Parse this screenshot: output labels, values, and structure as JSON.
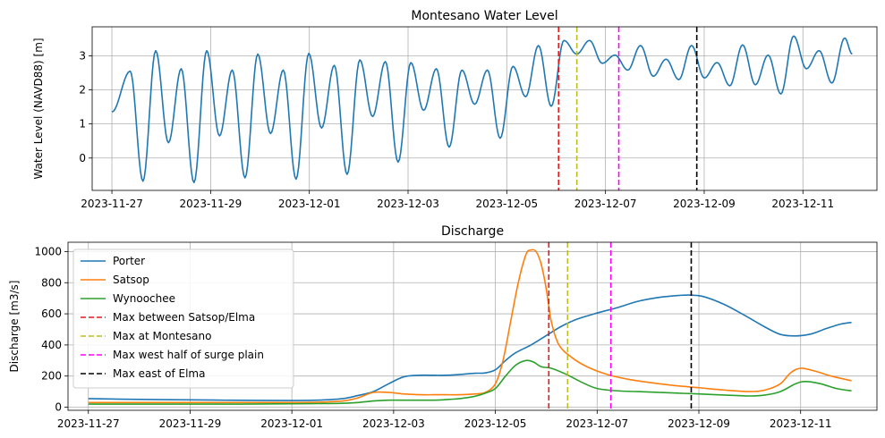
{
  "chart_data": [
    {
      "type": "line",
      "title": "Montesano Water Level",
      "xlabel": "",
      "ylabel": "Water Level (NAVD88) [m]",
      "x_ticks": [
        "2023-11-27",
        "2023-11-29",
        "2023-12-01",
        "2023-12-03",
        "2023-12-05",
        "2023-12-07",
        "2023-12-09",
        "2023-12-11"
      ],
      "y_ticks": [
        0,
        1,
        2,
        3
      ],
      "xlim_days": [
        -0.4,
        15.5
      ],
      "ylim": [
        -0.95,
        3.85
      ],
      "grid": true,
      "tide": {
        "start_day": 0.0,
        "end_day": 15.0,
        "period_days": 0.517,
        "first_high_day": 0.37,
        "highs": [
          2.55,
          3.15,
          2.62,
          3.15,
          2.58,
          3.05,
          2.58,
          3.07,
          2.72,
          2.88,
          2.83,
          2.8,
          2.62,
          2.58,
          2.58,
          2.69,
          3.3,
          3.45,
          3.45,
          3.02,
          3.3,
          2.9,
          3.3,
          2.8,
          3.32,
          3.02,
          3.58,
          3.15,
          3.52
        ],
        "lows": [
          -0.68,
          0.45,
          -0.72,
          0.65,
          -0.58,
          0.72,
          -0.62,
          0.88,
          -0.48,
          1.22,
          -0.12,
          1.4,
          0.32,
          1.58,
          0.58,
          1.8,
          1.52,
          3.05,
          2.78,
          2.58,
          2.4,
          2.3,
          2.35,
          2.12,
          2.15,
          1.88,
          2.62,
          2.2,
          2.4
        ],
        "start_value": 1.35,
        "end_value": 3.05
      },
      "series": [
        {
          "name": "",
          "color": "#1f77b4"
        }
      ],
      "vlines": [
        {
          "day": 9.05,
          "color": "#e41a1c"
        },
        {
          "day": 9.42,
          "color": "#bcbd22"
        },
        {
          "day": 10.27,
          "color": "#ff00ff"
        },
        {
          "day": 11.85,
          "color": "#000000"
        }
      ]
    },
    {
      "type": "line",
      "title": "Discharge",
      "xlabel": "",
      "ylabel": "Discharge [m3/s]",
      "x_ticks": [
        "2023-11-27",
        "2023-11-29",
        "2023-12-01",
        "2023-12-03",
        "2023-12-05",
        "2023-12-07",
        "2023-12-09",
        "2023-12-11"
      ],
      "y_ticks": [
        0,
        200,
        400,
        600,
        800,
        1000
      ],
      "xlim_days": [
        -0.4,
        15.5
      ],
      "ylim": [
        -20,
        1060
      ],
      "grid": true,
      "legend_position": "upper-left",
      "series": [
        {
          "name": "Porter",
          "color": "#1f77b4",
          "x": [
            0,
            1,
            2,
            3,
            4,
            4.5,
            5,
            5.3,
            5.6,
            5.9,
            6.2,
            6.5,
            6.8,
            7.0,
            7.3,
            7.6,
            7.8,
            8.0,
            8.2,
            8.4,
            8.7,
            9.0,
            9.3,
            9.6,
            10.0,
            10.4,
            10.8,
            11.2,
            11.6,
            11.85,
            12.1,
            12.5,
            12.9,
            13.3,
            13.6,
            13.9,
            14.2,
            14.5,
            14.8,
            15.0
          ],
          "values": [
            55,
            50,
            47,
            44,
            43,
            45,
            55,
            75,
            100,
            150,
            195,
            205,
            205,
            205,
            210,
            218,
            220,
            240,
            300,
            350,
            400,
            460,
            520,
            565,
            605,
            640,
            680,
            705,
            718,
            720,
            710,
            660,
            590,
            515,
            468,
            458,
            470,
            505,
            535,
            545
          ]
        },
        {
          "name": "Satsop",
          "color": "#ff7f0e",
          "x": [
            0,
            1,
            2,
            3,
            4,
            4.5,
            5,
            5.3,
            5.6,
            5.9,
            6.2,
            6.5,
            6.8,
            7.0,
            7.3,
            7.6,
            7.8,
            8.0,
            8.15,
            8.3,
            8.45,
            8.6,
            8.7,
            8.8,
            8.9,
            9.0,
            9.1,
            9.25,
            9.5,
            9.8,
            10.2,
            10.6,
            11.0,
            11.5,
            12.0,
            12.5,
            13.0,
            13.3,
            13.6,
            13.8,
            14.0,
            14.3,
            14.6,
            15.0
          ],
          "values": [
            30,
            30,
            30,
            30,
            30,
            32,
            40,
            60,
            95,
            95,
            85,
            80,
            80,
            80,
            80,
            85,
            95,
            150,
            300,
            550,
            800,
            980,
            1010,
            1000,
            920,
            760,
            550,
            400,
            320,
            260,
            210,
            180,
            160,
            140,
            125,
            110,
            100,
            110,
            150,
            220,
            250,
            230,
            200,
            170
          ]
        },
        {
          "name": "Wynoochee",
          "color": "#2ca02c",
          "x": [
            0,
            1,
            2,
            3,
            4,
            4.5,
            5,
            5.3,
            5.6,
            5.9,
            6.2,
            6.5,
            6.8,
            7.0,
            7.3,
            7.6,
            7.8,
            8.0,
            8.2,
            8.4,
            8.6,
            8.75,
            8.9,
            9.1,
            9.4,
            9.7,
            10.0,
            10.4,
            10.8,
            11.2,
            11.6,
            12.0,
            12.5,
            13.0,
            13.3,
            13.6,
            13.9,
            14.1,
            14.4,
            14.7,
            15.0
          ],
          "values": [
            20,
            20,
            20,
            20,
            22,
            23,
            25,
            30,
            40,
            45,
            45,
            45,
            45,
            48,
            55,
            70,
            90,
            120,
            200,
            270,
            300,
            290,
            260,
            250,
            210,
            160,
            120,
            105,
            100,
            95,
            90,
            85,
            78,
            72,
            78,
            100,
            150,
            165,
            150,
            120,
            105
          ]
        }
      ],
      "vlines": [
        {
          "day": 9.05,
          "color": "#e41a1c",
          "name": "Max between Satsop/Elma"
        },
        {
          "day": 9.42,
          "color": "#bcbd22",
          "name": "Max at Montesano"
        },
        {
          "day": 10.27,
          "color": "#ff00ff",
          "name": "Max west half of surge plain"
        },
        {
          "day": 11.85,
          "color": "#000000",
          "name": "Max east of Elma"
        }
      ]
    }
  ]
}
